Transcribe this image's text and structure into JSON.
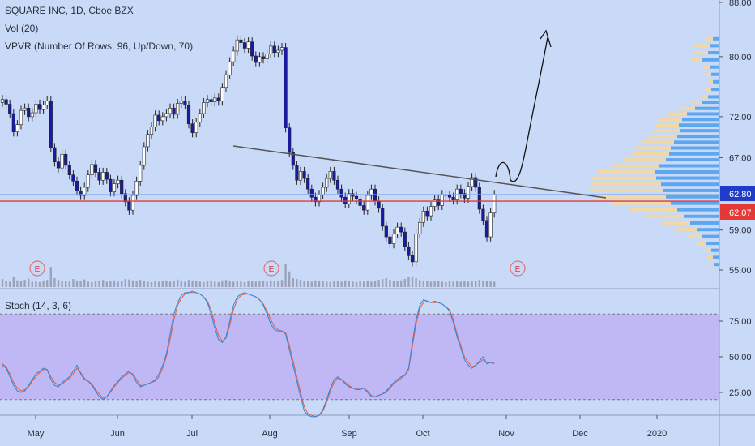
{
  "header": {
    "symbol_line": "SQUARE INC, 1D, Cboe BZX",
    "volume_line": "Vol (20)",
    "vpvr_line": "VPVR (Number Of Rows, 96, Up/Down, 70)",
    "stoch_line": "Stoch (14, 3, 6)"
  },
  "colors": {
    "background": "#c9daf8",
    "up_candle": "#ffffff",
    "down_candle": "#1a1aa6",
    "wick": "#222222",
    "support_line": "#e53935",
    "trendline": "#555555",
    "vpvr_up": "#f5d79a",
    "vpvr_down": "#4a9df0",
    "stoch_band": "#b79cf0",
    "stoch_k": "#2e86de",
    "stoch_d": "#e55b3c",
    "price_badge_blue": "#1e3cc8",
    "price_badge_red": "#e53935"
  },
  "chart_data": [
    {
      "type": "candlestick",
      "title": "SQUARE INC, 1D, Cboe BZX",
      "x_labels": [
        "May",
        "Jun",
        "Jul",
        "Aug",
        "Sep",
        "Oct",
        "Nov",
        "Dec",
        "2020"
      ],
      "y_ticks": [
        "55.00",
        "59.00",
        "62.07",
        "62.80",
        "67.00",
        "72.00",
        "80.00",
        "88.00"
      ],
      "yscale": "log",
      "ylim": [
        54.5,
        88
      ],
      "current_price": "62.80",
      "support_level": "62.07",
      "earnings_markers": [
        "E",
        "E",
        "E"
      ],
      "close": [
        74.2,
        73.6,
        72.4,
        70.1,
        71.0,
        72.8,
        73.1,
        72.0,
        72.5,
        73.6,
        72.9,
        73.5,
        74.0,
        68.2,
        66.5,
        65.8,
        67.4,
        66.1,
        65.0,
        64.3,
        63.2,
        62.7,
        63.6,
        65.0,
        66.2,
        65.3,
        64.4,
        65.3,
        64.5,
        63.1,
        64.0,
        64.4,
        62.9,
        62.0,
        61.1,
        62.7,
        64.3,
        66.1,
        68.3,
        69.8,
        70.7,
        72.2,
        71.5,
        72.0,
        72.4,
        73.1,
        72.3,
        73.7,
        74.0,
        73.5,
        71.1,
        70.0,
        71.3,
        72.4,
        73.8,
        74.2,
        73.9,
        74.4,
        74.0,
        75.8,
        77.5,
        79.3,
        80.8,
        82.4,
        82.0,
        81.2,
        82.1,
        80.1,
        79.2,
        80.0,
        79.7,
        80.4,
        81.5,
        80.6,
        80.9,
        81.3,
        70.6,
        67.6,
        66.1,
        64.4,
        65.4,
        64.6,
        63.4,
        62.5,
        62.0,
        62.8,
        63.6,
        64.6,
        65.4,
        64.4,
        63.4,
        62.5,
        61.8,
        62.9,
        62.6,
        62.3,
        61.6,
        61.1,
        62.7,
        63.4,
        62.1,
        61.3,
        59.4,
        58.3,
        57.6,
        58.6,
        59.3,
        58.8,
        57.3,
        56.4,
        55.8,
        58.6,
        59.8,
        61.0,
        60.5,
        61.5,
        62.2,
        61.6,
        62.8,
        62.7,
        62.5,
        62.2,
        63.4,
        62.9,
        62.4,
        63.7,
        64.7,
        63.6,
        61.2,
        60.0,
        58.3,
        60.8,
        62.8
      ],
      "volume": [
        18,
        14,
        12,
        22,
        15,
        13,
        16,
        19,
        12,
        14,
        11,
        13,
        16,
        45,
        20,
        16,
        14,
        13,
        12,
        18,
        15,
        14,
        17,
        12,
        11,
        13,
        14,
        16,
        12,
        13,
        15,
        12,
        14,
        18,
        17,
        15,
        13,
        16,
        14,
        12,
        11,
        14,
        12,
        13,
        15,
        12,
        13,
        17,
        14,
        12,
        16,
        15,
        13,
        12,
        11,
        14,
        13,
        12,
        11,
        15,
        16,
        14,
        12,
        13,
        12,
        11,
        14,
        13,
        12,
        14,
        13,
        12,
        15,
        13,
        14,
        16,
        52,
        35,
        20,
        18,
        16,
        14,
        13,
        12,
        15,
        13,
        14,
        12,
        11,
        13,
        14,
        12,
        15,
        13,
        12,
        11,
        13,
        12,
        14,
        12,
        13,
        16,
        18,
        20,
        16,
        14,
        13,
        15,
        18,
        22,
        24,
        20,
        16,
        14,
        13,
        12,
        14,
        13,
        12,
        11,
        13,
        12,
        14,
        12,
        13,
        12,
        14,
        13,
        16,
        15,
        14,
        13,
        12
      ]
    },
    {
      "type": "line",
      "title": "Stoch (14, 3, 6)",
      "y_ticks": [
        "25.00",
        "50.00",
        "75.00"
      ],
      "ylim": [
        0,
        100
      ],
      "band": [
        20,
        80
      ],
      "series": [
        {
          "values": [
            44,
            42,
            36,
            30,
            26,
            25,
            26,
            30,
            34,
            38,
            40,
            42,
            41,
            34,
            30,
            29,
            32,
            34,
            36,
            40,
            44,
            38,
            34,
            33,
            30,
            26,
            22,
            20,
            22,
            26,
            30,
            33,
            36,
            38,
            40,
            37,
            32,
            29,
            30,
            31,
            32,
            34,
            38,
            44,
            52,
            66,
            80,
            88,
            93,
            95,
            95,
            96,
            95,
            94,
            92,
            88,
            80,
            70,
            62,
            60,
            64,
            75,
            86,
            92,
            94,
            95,
            94,
            93,
            92,
            90,
            86,
            80,
            73,
            69,
            68,
            68,
            66,
            55,
            44,
            33,
            22,
            12,
            9,
            8,
            8,
            9,
            13,
            20,
            28,
            34,
            36,
            34,
            31,
            29,
            28,
            27,
            27,
            28,
            25,
            22,
            22,
            23,
            24,
            26,
            29,
            32,
            34,
            36,
            37,
            42,
            60,
            76,
            86,
            90,
            89,
            88,
            89,
            88,
            87,
            85,
            82,
            74,
            64,
            56,
            48,
            44,
            42,
            44,
            47,
            50,
            45,
            46,
            46
          ]
        },
        {
          "values": [
            45,
            43,
            38,
            32,
            28,
            26,
            27,
            29,
            33,
            36,
            39,
            41,
            41,
            36,
            32,
            30,
            31,
            33,
            35,
            38,
            42,
            39,
            35,
            33,
            31,
            27,
            24,
            21,
            22,
            25,
            29,
            32,
            35,
            37,
            39,
            38,
            34,
            30,
            30,
            31,
            32,
            33,
            36,
            42,
            50,
            62,
            76,
            86,
            91,
            94,
            95,
            95,
            95,
            94,
            92,
            89,
            83,
            73,
            65,
            61,
            63,
            72,
            83,
            90,
            93,
            94,
            94,
            93,
            92,
            90,
            87,
            82,
            76,
            71,
            69,
            68,
            67,
            58,
            47,
            36,
            25,
            15,
            10,
            9,
            8,
            9,
            12,
            18,
            26,
            32,
            35,
            34,
            32,
            30,
            28,
            28,
            27,
            28,
            26,
            23,
            22,
            23,
            24,
            25,
            28,
            31,
            33,
            35,
            37,
            41,
            57,
            73,
            84,
            88,
            89,
            88,
            88,
            88,
            87,
            85,
            83,
            76,
            66,
            58,
            50,
            46,
            43,
            44,
            46,
            48,
            46,
            46,
            45
          ]
        }
      ]
    }
  ]
}
